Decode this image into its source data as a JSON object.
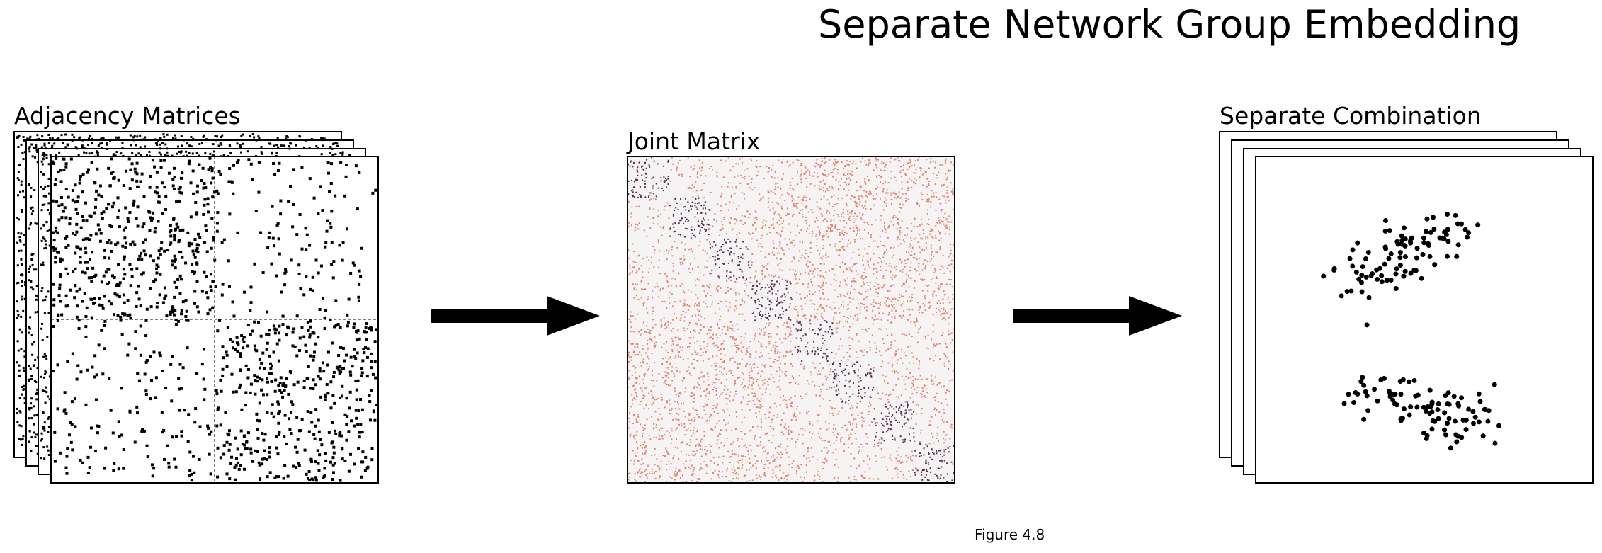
{
  "title": "Separate Network Group Embedding",
  "panels": {
    "adjacency": {
      "label": "Adjacency Matrices"
    },
    "joint": {
      "label": "Joint Matrix"
    },
    "separate": {
      "label": "Separate Combination"
    }
  },
  "caption": "Figure 4.8",
  "colors": {
    "frame": "#000000",
    "adjacency_dot": "#000000",
    "joint_low": "#e2826c",
    "joint_high": "#5b2a4a",
    "joint_background": "#f6f3f4",
    "arrow": "#000000",
    "scatter_dot": "#000000"
  },
  "icons": [
    "arrow-right-icon",
    "arrow-right-icon"
  ]
}
